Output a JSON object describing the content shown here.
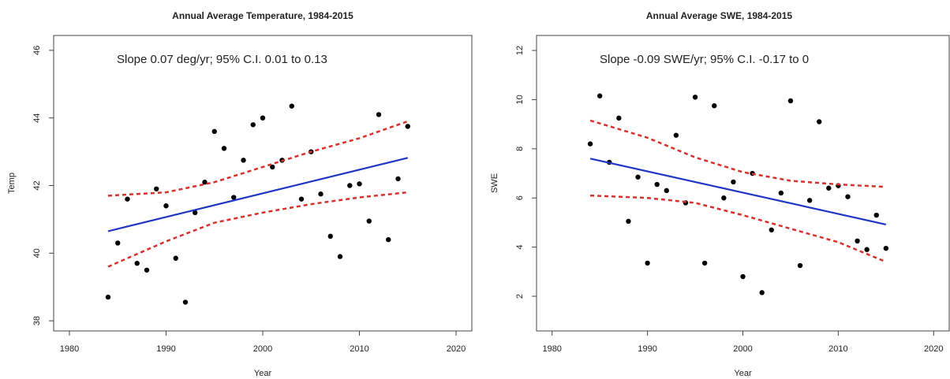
{
  "chart_data": [
    {
      "type": "scatter",
      "title": "Annual Average Temperature, 1984-2015",
      "annotation": "Slope 0.07 deg/yr; 95% C.I. 0.01 to 0.13",
      "x_label": "Year",
      "y_label": "Temp",
      "xlim": [
        1978.37,
        2021.63
      ],
      "ylim": [
        37.7,
        46.44
      ],
      "xticks": [
        1980,
        1990,
        2000,
        2010,
        2020
      ],
      "yticks": [
        38,
        40,
        42,
        44,
        46
      ],
      "series": [
        {
          "style": "points",
          "color": "#000000",
          "x": [
            1984,
            1985,
            1986,
            1987,
            1988,
            1989,
            1990,
            1991,
            1992,
            1993,
            1994,
            1995,
            1996,
            1997,
            1998,
            1999,
            2000,
            2001,
            2002,
            2003,
            2004,
            2005,
            2006,
            2007,
            2008,
            2009,
            2010,
            2011,
            2012,
            2013,
            2014,
            2015
          ],
          "values": [
            38.7,
            40.3,
            41.6,
            39.7,
            39.5,
            41.9,
            41.4,
            39.85,
            38.55,
            41.2,
            42.1,
            43.6,
            43.1,
            41.65,
            42.75,
            43.8,
            44.0,
            42.55,
            42.75,
            44.35,
            41.6,
            43.0,
            41.75,
            40.5,
            39.9,
            42.0,
            42.05,
            40.95,
            44.1,
            40.4,
            42.2,
            43.75
          ]
        },
        {
          "style": "line",
          "color": "#1f35c4",
          "x": [
            1984,
            2015
          ],
          "values": [
            40.65,
            42.82
          ]
        },
        {
          "style": "dashed",
          "color": "#d9302b",
          "x": [
            1984,
            1990,
            1995,
            2000,
            2005,
            2010,
            2015
          ],
          "values": [
            41.7,
            41.8,
            42.1,
            42.55,
            43.0,
            43.4,
            43.9
          ]
        },
        {
          "style": "dashed",
          "color": "#d9302b",
          "x": [
            1984,
            1990,
            1995,
            2000,
            2005,
            2010,
            2015
          ],
          "values": [
            39.6,
            40.35,
            40.9,
            41.2,
            41.45,
            41.65,
            41.8
          ]
        }
      ]
    },
    {
      "type": "scatter",
      "title": "Annual Average SWE, 1984-2015",
      "annotation": "Slope -0.09 SWE/yr; 95% C.I. -0.17 to 0",
      "x_label": "Year",
      "y_label": "SWE",
      "xlim": [
        1978.37,
        2021.63
      ],
      "ylim": [
        0.59,
        12.61
      ],
      "xticks": [
        1980,
        1990,
        2000,
        2010,
        2020
      ],
      "yticks": [
        2,
        4,
        6,
        8,
        10,
        12
      ],
      "series": [
        {
          "style": "points",
          "color": "#000000",
          "x": [
            1984,
            1985,
            1986,
            1987,
            1988,
            1989,
            1990,
            1991,
            1992,
            1993,
            1994,
            1995,
            1996,
            1997,
            1998,
            1999,
            2000,
            2001,
            2002,
            2003,
            2004,
            2005,
            2006,
            2007,
            2008,
            2009,
            2010,
            2011,
            2012,
            2013,
            2014,
            2015
          ],
          "values": [
            8.2,
            10.15,
            7.45,
            9.25,
            5.05,
            6.85,
            3.35,
            6.55,
            6.3,
            8.55,
            5.8,
            10.1,
            3.35,
            9.75,
            6.0,
            6.65,
            2.8,
            7.0,
            2.15,
            4.7,
            6.2,
            9.95,
            3.25,
            5.9,
            9.1,
            6.4,
            6.5,
            6.05,
            4.25,
            3.9,
            5.3,
            3.95
          ]
        },
        {
          "style": "line",
          "color": "#1f35c4",
          "x": [
            1984,
            2015
          ],
          "values": [
            7.6,
            4.92
          ]
        },
        {
          "style": "dashed",
          "color": "#d9302b",
          "x": [
            1984,
            1990,
            1995,
            2000,
            2005,
            2010,
            2015
          ],
          "values": [
            9.15,
            8.45,
            7.65,
            7.05,
            6.7,
            6.55,
            6.45
          ]
        },
        {
          "style": "dashed",
          "color": "#d9302b",
          "x": [
            1984,
            1990,
            1995,
            2000,
            2005,
            2010,
            2015
          ],
          "values": [
            6.1,
            6.0,
            5.8,
            5.3,
            4.75,
            4.2,
            3.4
          ]
        }
      ]
    }
  ]
}
